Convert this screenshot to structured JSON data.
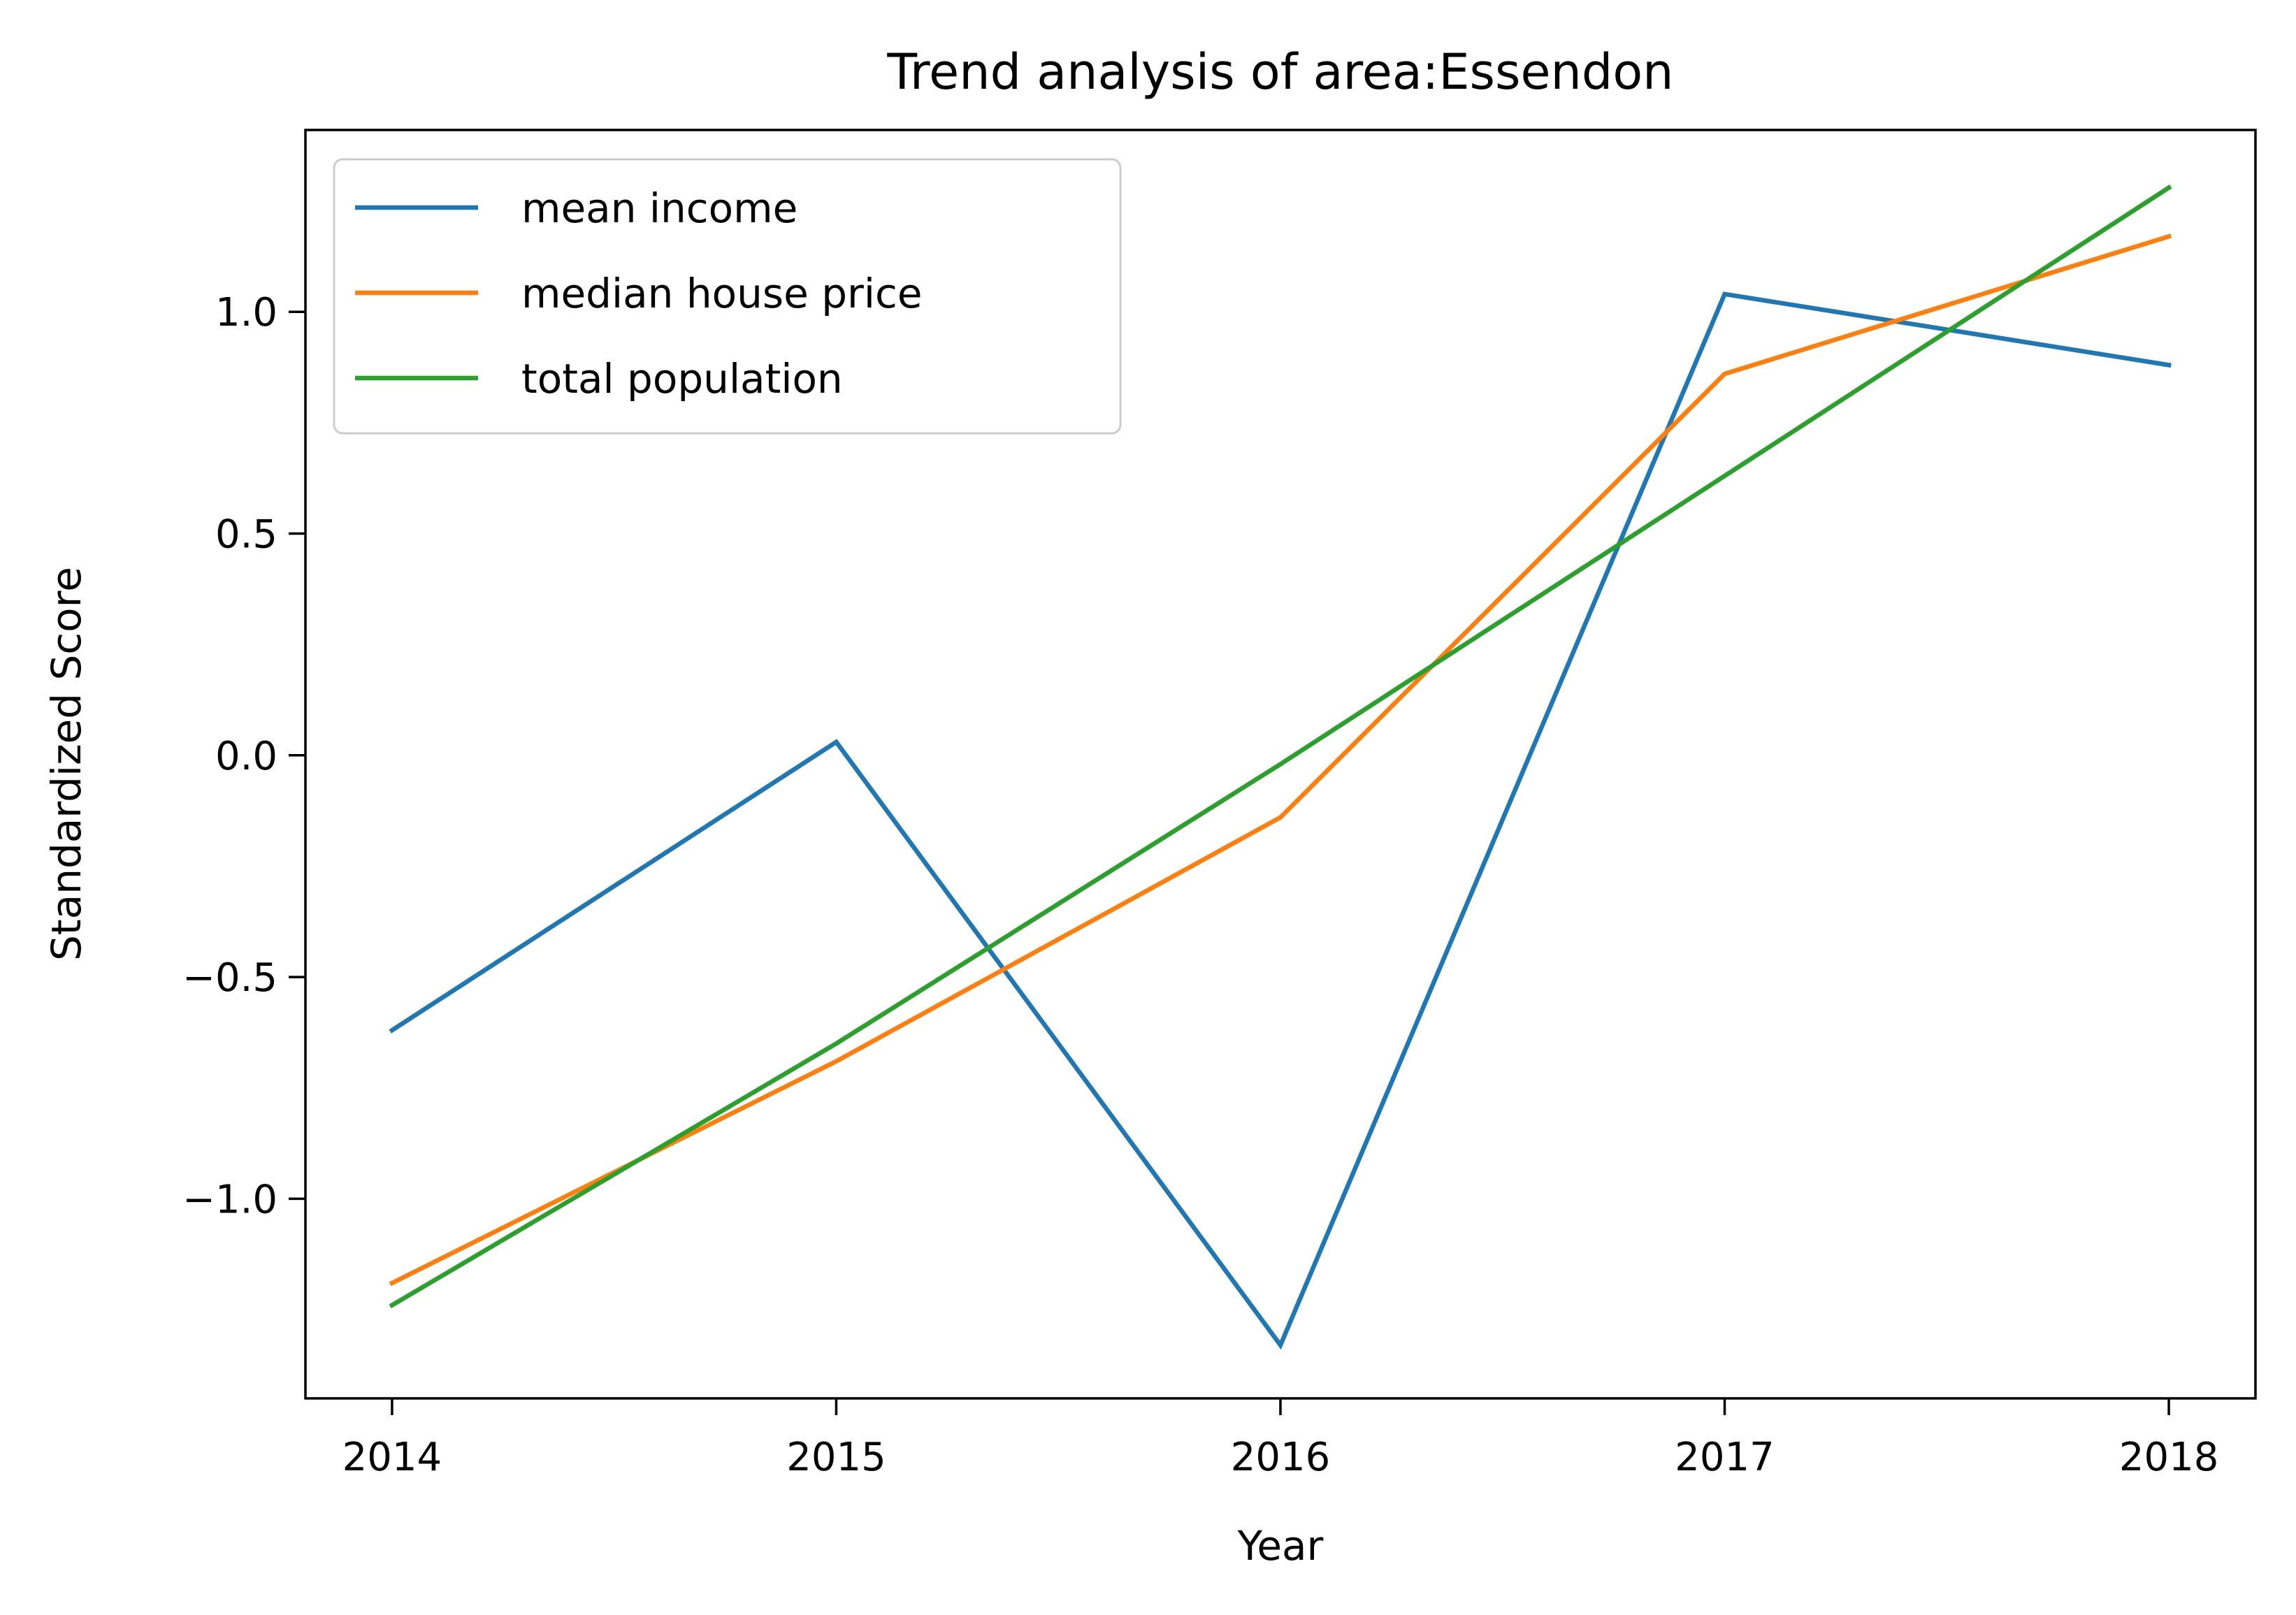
{
  "chart_data": {
    "type": "line",
    "title": "Trend analysis of area:Essendon",
    "xlabel": "Year",
    "ylabel": "Standardized Score",
    "x": [
      2014,
      2015,
      2016,
      2017,
      2018
    ],
    "x_tick_labels": [
      "2014",
      "2015",
      "2016",
      "2017",
      "2018"
    ],
    "y_ticks": [
      -1.0,
      -0.5,
      0.0,
      0.5,
      1.0
    ],
    "y_tick_labels": [
      "−1.0",
      "−0.5",
      "0.0",
      "0.5",
      "1.0"
    ],
    "xlim": [
      2013.805,
      2018.195
    ],
    "ylim": [
      -1.45,
      1.41
    ],
    "grid": false,
    "legend_position": "top-left",
    "series": [
      {
        "name": "mean income",
        "color": "#1f77b4",
        "values": [
          -0.62,
          0.03,
          -1.33,
          1.04,
          0.88
        ]
      },
      {
        "name": "median house price",
        "color": "#ff7f0e",
        "values": [
          -1.19,
          -0.69,
          -0.14,
          0.86,
          1.17
        ]
      },
      {
        "name": "total population",
        "color": "#2ca02c",
        "values": [
          -1.24,
          -0.65,
          -0.02,
          0.63,
          1.28
        ]
      }
    ]
  }
}
